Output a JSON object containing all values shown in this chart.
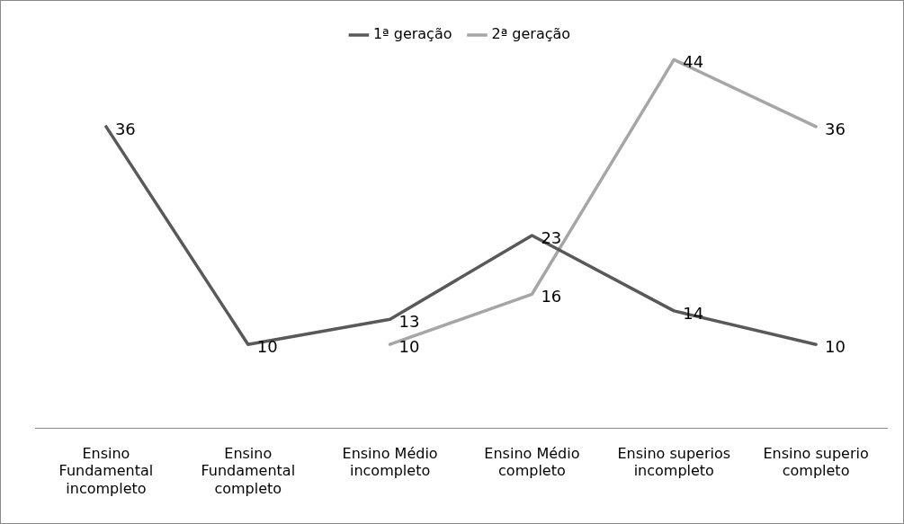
{
  "chart_data": {
    "type": "line",
    "categories": [
      "Ensino Fundamental incompleto",
      "Ensino Fundamental completo",
      "Ensino Médio incompleto",
      "Ensino Médio completo",
      "Ensino superios incompleto",
      "Ensino superio completo"
    ],
    "series": [
      {
        "name": "1ª geração",
        "color": "#595959",
        "values": [
          36,
          10,
          13,
          23,
          14,
          10
        ]
      },
      {
        "name": "2ª geração",
        "color": "#a6a6a6",
        "values": [
          null,
          null,
          10,
          16,
          44,
          36
        ]
      }
    ],
    "tick_labels": "x",
    "grid": false,
    "legend": "top",
    "marker": "none",
    "line_style": "solid",
    "data_labels": true
  }
}
